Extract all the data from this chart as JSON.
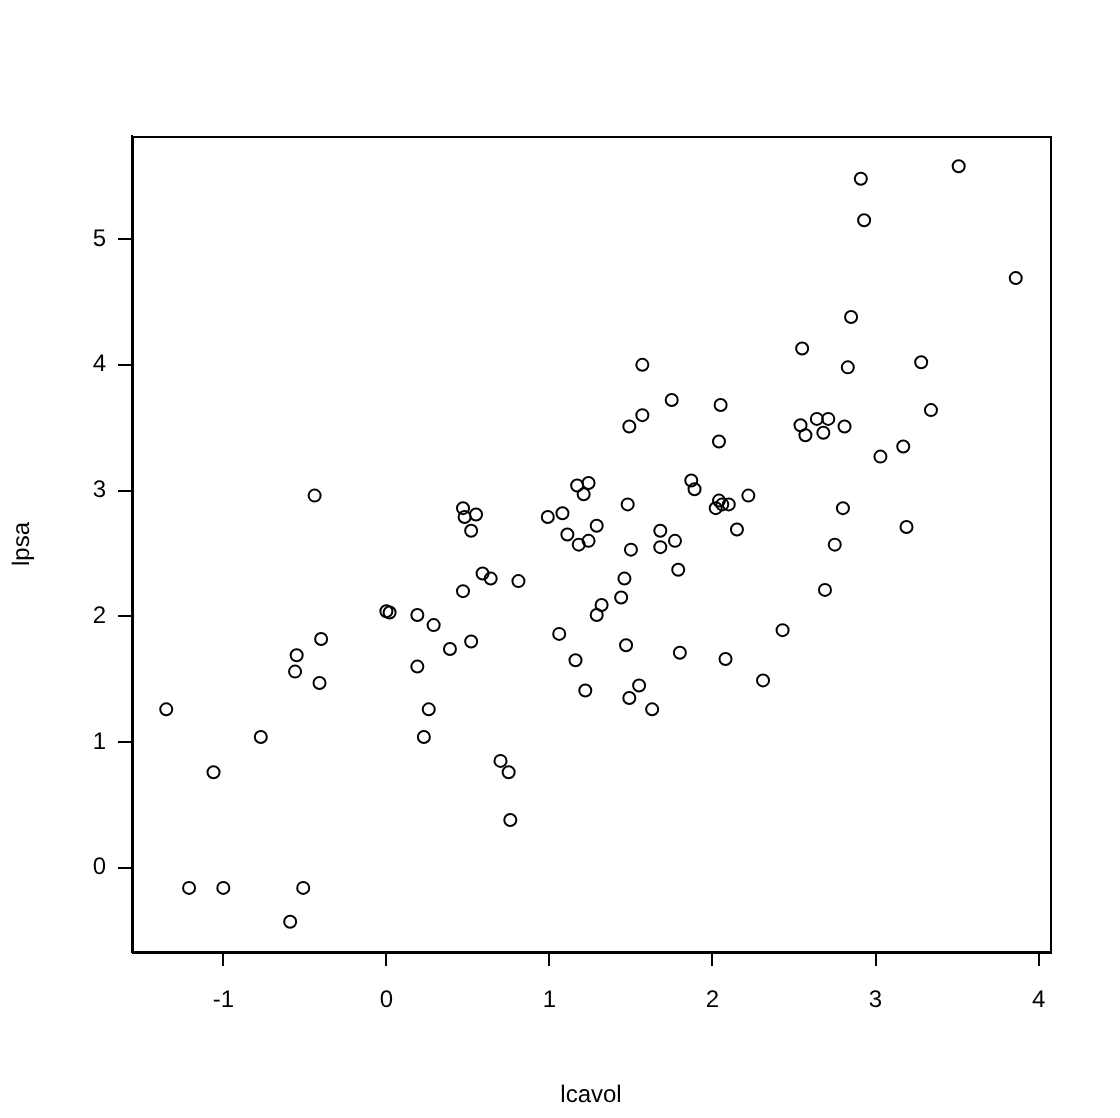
{
  "chart_data": {
    "type": "scatter",
    "xlabel": "lcavol",
    "ylabel": "lpsa",
    "color": "#000000",
    "marker": "circle",
    "grid": false,
    "legend": false,
    "x": [
      -1.21,
      -1.0,
      -0.51,
      -0.59,
      -1.35,
      -1.06,
      -0.77,
      -0.55,
      -0.56,
      -0.4,
      -0.41,
      0.0,
      0.02,
      0.19,
      0.29,
      0.39,
      0.52,
      0.19,
      0.26,
      0.23,
      0.7,
      0.75,
      0.76,
      0.47,
      0.59,
      0.64,
      0.81,
      -0.44,
      0.47,
      0.48,
      0.55,
      0.52,
      0.99,
      1.08,
      1.11,
      1.17,
      1.24,
      1.21,
      1.29,
      1.18,
      1.24,
      1.5,
      1.68,
      1.68,
      1.77,
      2.15,
      2.75,
      3.19,
      1.79,
      1.46,
      1.44,
      1.32,
      1.29,
      2.69,
      2.43,
      1.06,
      1.47,
      1.8,
      2.08,
      1.16,
      2.31,
      1.22,
      1.55,
      1.49,
      1.63,
      3.51,
      2.91,
      2.93,
      3.86,
      2.85,
      2.55,
      2.83,
      3.28,
      1.57,
      3.34,
      1.75,
      2.05,
      1.49,
      1.57,
      2.04,
      2.54,
      2.57,
      2.64,
      2.68,
      2.71,
      2.81,
      3.03,
      3.17,
      1.87,
      1.89,
      1.48,
      2.04,
      2.02,
      2.06,
      2.1,
      2.22,
      2.8
    ],
    "values": [
      -0.16,
      -0.16,
      -0.16,
      -0.43,
      1.26,
      0.76,
      1.04,
      1.69,
      1.56,
      1.82,
      1.47,
      2.04,
      2.03,
      2.01,
      1.93,
      1.74,
      1.8,
      1.6,
      1.26,
      1.04,
      0.85,
      0.76,
      0.38,
      2.2,
      2.34,
      2.3,
      2.28,
      2.96,
      2.86,
      2.79,
      2.81,
      2.68,
      2.79,
      2.82,
      2.65,
      3.04,
      3.06,
      2.97,
      2.72,
      2.57,
      2.6,
      2.53,
      2.68,
      2.55,
      2.6,
      2.69,
      2.57,
      2.71,
      2.37,
      2.3,
      2.15,
      2.09,
      2.01,
      2.21,
      1.89,
      1.86,
      1.77,
      1.71,
      1.66,
      1.65,
      1.49,
      1.41,
      1.45,
      1.35,
      1.26,
      5.58,
      5.48,
      5.15,
      4.69,
      4.38,
      4.13,
      3.98,
      4.02,
      4.0,
      3.64,
      3.72,
      3.68,
      3.51,
      3.6,
      3.39,
      3.52,
      3.44,
      3.57,
      3.46,
      3.57,
      3.51,
      3.27,
      3.35,
      3.08,
      3.01,
      2.89,
      2.92,
      2.86,
      2.89,
      2.89,
      2.96,
      2.86
    ],
    "xlim": [
      -1.56,
      4.07
    ],
    "ylim": [
      -0.67,
      5.82
    ],
    "xticks": [
      -1,
      0,
      1,
      2,
      3,
      4
    ],
    "yticks": [
      0,
      1,
      2,
      3,
      4,
      5
    ]
  }
}
